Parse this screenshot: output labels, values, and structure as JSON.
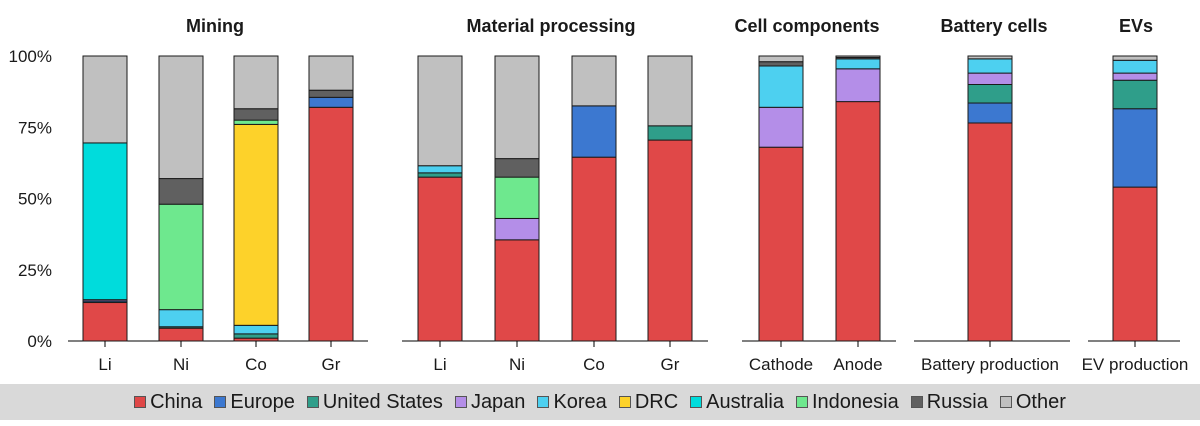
{
  "chart_data": {
    "type": "stacked-bar",
    "yticks": [
      "0%",
      "25%",
      "50%",
      "75%",
      "100%"
    ],
    "ylim": [
      0,
      100
    ],
    "series": [
      {
        "key": "china",
        "name": "China",
        "color": "#e04848"
      },
      {
        "key": "europe",
        "name": "Europe",
        "color": "#3c78d0"
      },
      {
        "key": "us",
        "name": "United States",
        "color": "#2f9e8a"
      },
      {
        "key": "japan",
        "name": "Japan",
        "color": "#b48ee8"
      },
      {
        "key": "korea",
        "name": "Korea",
        "color": "#4dd0f0"
      },
      {
        "key": "drc",
        "name": "DRC",
        "color": "#fdd22a"
      },
      {
        "key": "australia",
        "name": "Australia",
        "color": "#00dcdc"
      },
      {
        "key": "indonesia",
        "name": "Indonesia",
        "color": "#6ee88e"
      },
      {
        "key": "russia",
        "name": "Russia",
        "color": "#606060"
      },
      {
        "key": "other",
        "name": "Other",
        "color": "#c0c0c0"
      }
    ],
    "groups": [
      {
        "title": "Mining",
        "bars": [
          {
            "label": "Li",
            "segments": {
              "australia": 55,
              "china": 13.5,
              "europe": 0.5,
              "japan": 0.5,
              "other": 30.5
            }
          },
          {
            "label": "Ni",
            "segments": {
              "indonesia": 37,
              "korea": 6,
              "china": 4.5,
              "russia": 9,
              "us": 0.5,
              "other": 43
            }
          },
          {
            "label": "Co",
            "segments": {
              "drc": 70.5,
              "indonesia": 1.5,
              "korea": 3,
              "us": 1.5,
              "china": 1,
              "russia": 4,
              "other": 18.5
            }
          },
          {
            "label": "Gr",
            "segments": {
              "china": 82,
              "russia": 2.5,
              "europe": 3.5,
              "other": 12
            }
          }
        ]
      },
      {
        "title": "Material processing",
        "bars": [
          {
            "label": "Li",
            "segments": {
              "china": 57.5,
              "korea": 2.5,
              "us": 1.5,
              "other": 38.5
            }
          },
          {
            "label": "Ni",
            "segments": {
              "china": 35.5,
              "indonesia": 14.5,
              "japan": 7.5,
              "russia": 6.5,
              "other": 36
            }
          },
          {
            "label": "Co",
            "segments": {
              "china": 64.5,
              "europe": 18,
              "other": 17.5
            }
          },
          {
            "label": "Gr",
            "segments": {
              "china": 70.5,
              "us": 5,
              "other": 24.5
            }
          }
        ]
      },
      {
        "title": "Cell components",
        "bars": [
          {
            "label": "Cathode",
            "segments": {
              "china": 68,
              "russia": 1.5,
              "japan": 14,
              "korea": 14.5,
              "other": 2
            }
          },
          {
            "label": "Anode",
            "segments": {
              "china": 84,
              "russia": 0.5,
              "japan": 11.5,
              "korea": 3.5,
              "other": 0.5
            }
          }
        ]
      },
      {
        "title": "Battery cells",
        "bars": [
          {
            "label": "Battery production",
            "segments": {
              "china": 76.5,
              "europe": 7,
              "us": 6.5,
              "korea": 5,
              "japan": 4,
              "other": 1
            }
          }
        ]
      },
      {
        "title": "EVs",
        "bars": [
          {
            "label": "EV production",
            "segments": {
              "china": 54,
              "europe": 27.5,
              "us": 10,
              "korea": 4.5,
              "japan": 2.5,
              "other": 1.5
            }
          }
        ]
      }
    ]
  }
}
